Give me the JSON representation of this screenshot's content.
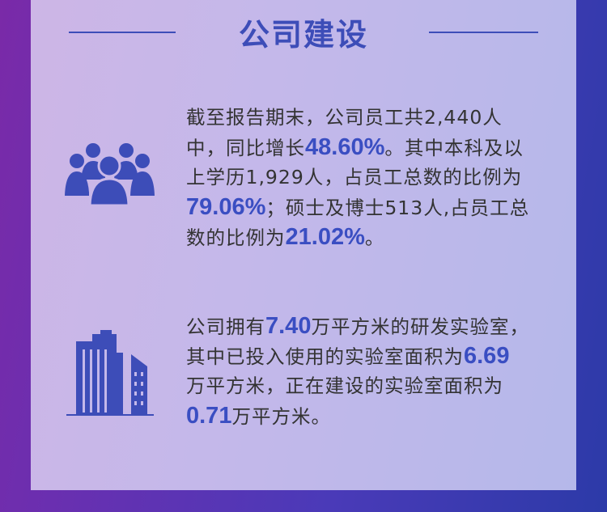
{
  "title": "公司建设",
  "colors": {
    "accent": "#3d4db8",
    "text": "#333333",
    "panel": "#c4b8ea"
  },
  "sections": [
    {
      "icon": "people-group-icon",
      "lines": [
        [
          {
            "t": "截至报告期末，公司员工共2,440人"
          }
        ],
        [
          {
            "t": "中，同比增长"
          },
          {
            "t": "48.60%",
            "hl": true
          },
          {
            "t": "。其中本科及以"
          }
        ],
        [
          {
            "t": "上学历1,929人，占员工总数的比例为"
          }
        ],
        [
          {
            "t": "79.06%",
            "hl": true
          },
          {
            "t": "；硕士及博士513人,占员工总"
          }
        ],
        [
          {
            "t": "数的比例为"
          },
          {
            "t": "21.02%",
            "hl": true
          },
          {
            "t": "。"
          }
        ]
      ]
    },
    {
      "icon": "building-icon",
      "lines": [
        [
          {
            "t": "公司拥有"
          },
          {
            "t": "7.40",
            "hl": true
          },
          {
            "t": "万平方米的研发实验室，"
          }
        ],
        [
          {
            "t": "其中已投入使用的实验室面积为"
          },
          {
            "t": "6.69",
            "hl": true
          }
        ],
        [
          {
            "t": "万平方米，正在建设的实验室面积为"
          }
        ],
        [
          {
            "t": "0.71",
            "hl": true
          },
          {
            "t": "万平方米。"
          }
        ]
      ]
    }
  ]
}
